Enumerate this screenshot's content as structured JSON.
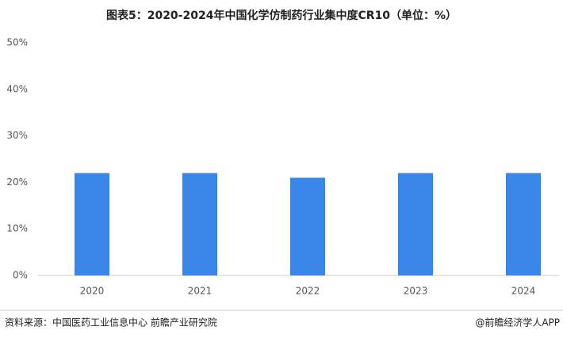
{
  "chart_data": {
    "type": "bar",
    "title": "图表5：2020-2024年中国化学仿制药行业集中度CR10（单位：%）",
    "categories": [
      "2020",
      "2021",
      "2022",
      "2023",
      "2024"
    ],
    "values": [
      22,
      22,
      21,
      22,
      22
    ],
    "color": "#3a86e8",
    "ylim": [
      0,
      50
    ],
    "yticks": [
      {
        "value": 0,
        "label": "0%"
      },
      {
        "value": 10,
        "label": "10%"
      },
      {
        "value": 20,
        "label": "20%"
      },
      {
        "value": 30,
        "label": "30%"
      },
      {
        "value": 40,
        "label": "40%"
      },
      {
        "value": 50,
        "label": "50%"
      }
    ],
    "grid": false,
    "source": "资料来源：中国医药工业信息中心  前瞻产业研究院",
    "credit": "@前瞻经济学人APP"
  }
}
